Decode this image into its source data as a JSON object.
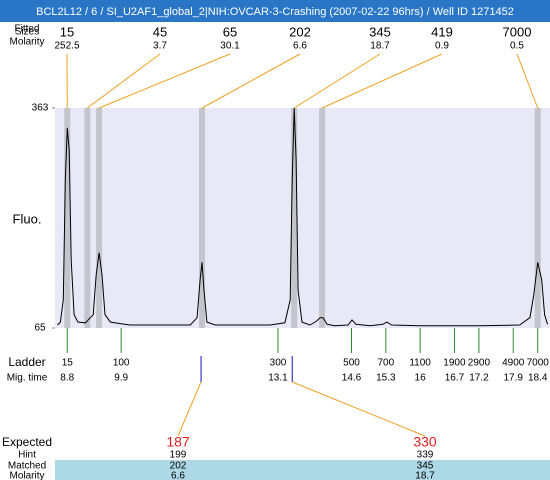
{
  "title": "BCL2L12 / 6 / SI_U2AF1_global_2|NIH:OVCAR-3-Crashing (2007-02-22 96hrs) / Well ID 1271452",
  "chart_data": {
    "type": "electropherogram",
    "y_label": "Fluo.",
    "ylim": [
      65,
      363
    ],
    "yticks": [
      65,
      363
    ],
    "xlim": [
      8.55,
      18.65
    ],
    "trace": {
      "color": "#000000",
      "x": [
        8.6,
        8.66,
        8.72,
        8.76,
        8.8,
        8.84,
        8.88,
        8.94,
        9.02,
        9.17,
        9.33,
        9.39,
        9.45,
        9.51,
        9.57,
        9.68,
        10.08,
        11.31,
        11.45,
        11.51,
        11.55,
        11.59,
        11.65,
        11.82,
        12.94,
        13.24,
        13.35,
        13.39,
        13.43,
        13.47,
        13.51,
        13.59,
        13.75,
        13.88,
        13.96,
        14.02,
        14.1,
        14.26,
        14.53,
        14.61,
        14.69,
        14.98,
        15.24,
        15.32,
        15.42,
        15.99,
        17.22,
        18.03,
        18.24,
        18.32,
        18.4,
        18.48,
        18.54,
        18.6
      ],
      "y": [
        69,
        73,
        103,
        265,
        336,
        306,
        157,
        83,
        73,
        72,
        83,
        137,
        167,
        137,
        83,
        73,
        69,
        69,
        79,
        130,
        154,
        116,
        73,
        69,
        69,
        72,
        103,
        265,
        363,
        293,
        116,
        73,
        69,
        74,
        79,
        79,
        70,
        68,
        69,
        76,
        70,
        68,
        70,
        73,
        69,
        68,
        68,
        69,
        79,
        110,
        154,
        130,
        83,
        70
      ]
    },
    "peak_table": {
      "labels": [
        "Fitted",
        "Sizes",
        "Molarity"
      ],
      "sizes": [
        15,
        45,
        65,
        202,
        345,
        419,
        7000
      ],
      "molarity": [
        252.5,
        3.7,
        30.1,
        6.6,
        18.7,
        0.9,
        0.5
      ],
      "migration_times": [
        8.8,
        9.21,
        9.45,
        11.55,
        13.43,
        14.0,
        18.4
      ]
    },
    "ladder": {
      "label": "Ladder",
      "time_label": "Mig. time",
      "color": "#2e8b2e",
      "sizes": [
        15,
        100,
        300,
        500,
        700,
        1100,
        1900,
        2900,
        4900,
        7000
      ],
      "migration_times": [
        8.8,
        9.9,
        13.1,
        14.6,
        15.3,
        16,
        16.7,
        17.2,
        17.9,
        18.4
      ]
    },
    "expected": {
      "label": "Expected",
      "values": [
        187,
        330
      ],
      "migration_times": [
        11.53,
        13.39
      ],
      "hint_label": "Hint",
      "hint": [
        199,
        339
      ],
      "matched_label": "Matched",
      "matched": [
        202,
        345
      ],
      "molarity_label": "Molarity",
      "molarity": [
        6.6,
        18.7
      ]
    }
  }
}
